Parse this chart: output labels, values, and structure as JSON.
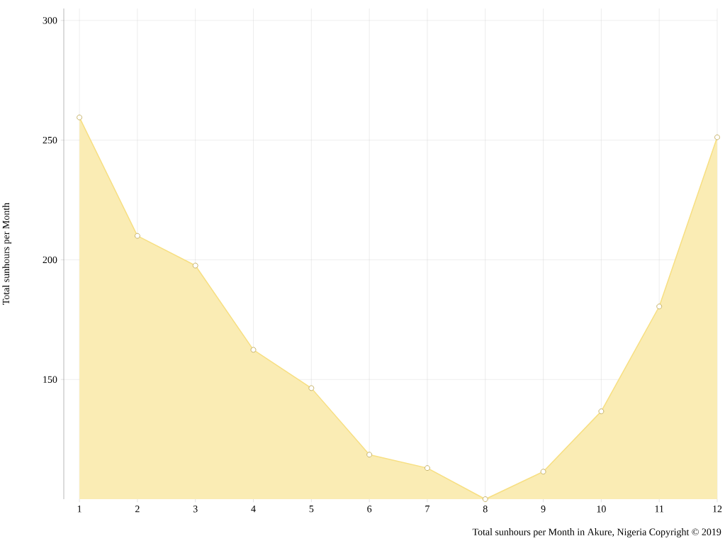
{
  "chart_data": {
    "type": "area",
    "ylabel": "Total sunhours per Month",
    "annotations": [
      "Total sunhours per Month in Akure, Nigeria Copyright © 2019"
    ],
    "x": [
      1,
      2,
      3,
      4,
      5,
      6,
      7,
      8,
      9,
      10,
      11,
      12
    ],
    "series": [
      {
        "color": "#f7df82",
        "values": [
          259.5,
          210,
          197.6,
          162.4,
          146.4,
          118.6,
          113,
          100,
          111.5,
          136.7,
          180.5,
          251.2
        ]
      }
    ],
    "xlim": [
      0.73,
      12
    ],
    "ylim": [
      100,
      305
    ],
    "xticks": [
      1,
      2,
      3,
      4,
      5,
      6,
      7,
      8,
      9,
      10,
      11,
      12
    ],
    "yticks": [
      150,
      200,
      250,
      300
    ],
    "grid": true,
    "marker": "circle"
  }
}
